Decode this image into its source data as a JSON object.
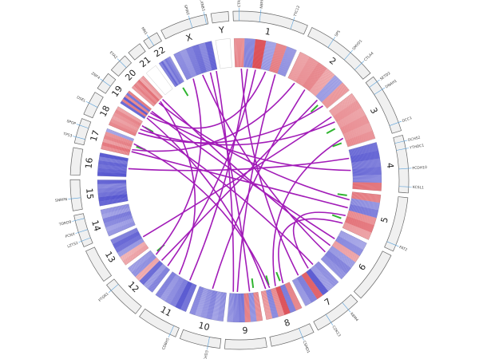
{
  "chart_data": {
    "type": "circos",
    "link_color": "#a21cb8",
    "point_color": "#2fb52f",
    "heat_positive_color": "#d3202a",
    "heat_negative_color": "#2a2ac4",
    "chromosomes": [
      {
        "name": "1",
        "length": 249,
        "heat": [
          0.4,
          -0.5,
          0.9,
          -0.3,
          0.5,
          -0.4
        ]
      },
      {
        "name": "2",
        "length": 243,
        "heat": [
          0.3,
          0.4,
          0.5,
          0.3,
          -0.4,
          0.4
        ]
      },
      {
        "name": "3",
        "length": 198,
        "heat": [
          0.3,
          0.4,
          0.3,
          0.4,
          0.3,
          0.4
        ]
      },
      {
        "name": "4",
        "length": 190,
        "heat": [
          -0.7,
          -0.8,
          -0.6,
          -0.7,
          -0.5,
          0.6
        ]
      },
      {
        "name": "5",
        "length": 181,
        "heat": [
          0.5,
          -0.4,
          -0.6,
          0.4,
          0.6,
          0.3
        ]
      },
      {
        "name": "6",
        "length": 171,
        "heat": [
          -0.3,
          -0.5,
          0.3,
          -0.4,
          -0.6,
          -0.5
        ]
      },
      {
        "name": "7",
        "length": 159,
        "heat": [
          -0.5,
          -0.4,
          -0.9,
          0.8,
          -0.6,
          -0.4
        ]
      },
      {
        "name": "8",
        "length": 145,
        "heat": [
          0.5,
          -0.6,
          0.9,
          0.4,
          -0.5,
          0.3
        ]
      },
      {
        "name": "9",
        "length": 138,
        "heat": [
          0.4,
          -0.4,
          0.5,
          -0.6,
          -0.5,
          -0.4
        ]
      },
      {
        "name": "10",
        "length": 134,
        "heat": [
          -0.4,
          -0.3,
          -0.5,
          -0.4,
          -0.3,
          -0.5
        ]
      },
      {
        "name": "11",
        "length": 135,
        "heat": [
          -0.7,
          -0.9,
          -0.6,
          -0.5,
          -0.4,
          -0.6
        ]
      },
      {
        "name": "12",
        "length": 133,
        "heat": [
          -0.6,
          -0.4,
          -0.8,
          0.3,
          -0.5,
          -0.4
        ]
      },
      {
        "name": "13",
        "length": 114,
        "heat": [
          0.3,
          0.2,
          -0.4,
          -0.7,
          -0.8,
          -0.6
        ]
      },
      {
        "name": "14",
        "length": 107,
        "heat": [
          -0.4,
          -0.3,
          -0.5,
          -0.6,
          -0.3,
          -0.4
        ]
      },
      {
        "name": "15",
        "length": 102,
        "heat": [
          -0.8,
          -0.9,
          -0.7,
          -0.6,
          -0.5,
          -0.8
        ]
      },
      {
        "name": "16",
        "length": 90,
        "heat": [
          -0.9,
          -0.8,
          -0.7,
          -0.8,
          -0.6,
          -0.9
        ]
      },
      {
        "name": "17",
        "length": 83,
        "heat": [
          0.4,
          0.6,
          0.3,
          0.5,
          0.4,
          -0.3
        ]
      },
      {
        "name": "18",
        "length": 80,
        "heat": [
          0.5,
          0.4,
          0.3,
          0.4,
          0.5,
          0.3
        ]
      },
      {
        "name": "19",
        "length": 59,
        "heat": [
          -0.8,
          0.6,
          -0.9,
          0.5,
          -0.7,
          0.6
        ]
      },
      {
        "name": "20",
        "length": 64,
        "heat": [
          0.4,
          0.6,
          0.5,
          0.7,
          0.3,
          0.4
        ]
      },
      {
        "name": "21",
        "length": 47,
        "heat": [
          0,
          0,
          0,
          0,
          0,
          0
        ]
      },
      {
        "name": "22",
        "length": 51,
        "heat": [
          -0.6,
          -0.8,
          -0.5,
          -0.7,
          -0.6,
          -0.5
        ]
      },
      {
        "name": "X",
        "length": 156,
        "heat": [
          -0.5,
          -0.4,
          -0.6,
          -0.7,
          -0.5,
          -0.8
        ]
      },
      {
        "name": "Y",
        "length": 57,
        "heat": [
          0,
          0,
          0,
          0,
          0,
          0
        ]
      }
    ],
    "links": [
      {
        "from": [
          "1",
          60
        ],
        "to": [
          "11",
          40
        ]
      },
      {
        "from": [
          "1",
          150
        ],
        "to": [
          "19",
          20
        ]
      },
      {
        "from": [
          "2",
          40
        ],
        "to": [
          "17",
          30
        ]
      },
      {
        "from": [
          "2",
          180
        ],
        "to": [
          "12",
          60
        ]
      },
      {
        "from": [
          "3",
          60
        ],
        "to": [
          "18",
          40
        ]
      },
      {
        "from": [
          "3",
          150
        ],
        "to": [
          "8",
          70
        ]
      },
      {
        "from": [
          "4",
          100
        ],
        "to": [
          "19",
          40
        ]
      },
      {
        "from": [
          "5",
          40
        ],
        "to": [
          "20",
          30
        ]
      },
      {
        "from": [
          "5",
          120
        ],
        "to": [
          "7",
          60
        ]
      },
      {
        "from": [
          "5",
          160
        ],
        "to": [
          "8",
          30
        ]
      },
      {
        "from": [
          "6",
          50
        ],
        "to": [
          "19",
          50
        ]
      },
      {
        "from": [
          "6",
          130
        ],
        "to": [
          "X",
          80
        ]
      },
      {
        "from": [
          "7",
          30
        ],
        "to": [
          "18",
          60
        ]
      },
      {
        "from": [
          "7",
          120
        ],
        "to": [
          "1",
          30
        ]
      },
      {
        "from": [
          "8",
          100
        ],
        "to": [
          "17",
          60
        ]
      },
      {
        "from": [
          "9",
          40
        ],
        "to": [
          "X",
          120
        ]
      },
      {
        "from": [
          "9",
          100
        ],
        "to": [
          "1",
          200
        ]
      },
      {
        "from": [
          "10",
          70
        ],
        "to": [
          "2",
          100
        ]
      },
      {
        "from": [
          "11",
          100
        ],
        "to": [
          "20",
          40
        ]
      },
      {
        "from": [
          "12",
          20
        ],
        "to": [
          "1",
          100
        ]
      },
      {
        "from": [
          "12",
          100
        ],
        "to": [
          "X",
          30
        ]
      },
      {
        "from": [
          "13",
          60
        ],
        "to": [
          "3",
          30
        ]
      },
      {
        "from": [
          "16",
          40
        ],
        "to": [
          "4",
          40
        ]
      },
      {
        "from": [
          "17",
          20
        ],
        "to": [
          "5",
          80
        ]
      },
      {
        "from": [
          "18",
          20
        ],
        "to": [
          "2",
          220
        ]
      },
      {
        "from": [
          "19",
          10
        ],
        "to": [
          "8",
          120
        ]
      },
      {
        "from": [
          "20",
          55
        ],
        "to": [
          "6",
          90
        ]
      },
      {
        "from": [
          "X",
          150
        ],
        "to": [
          "9",
          120
        ]
      }
    ],
    "points": [
      {
        "chrom": "22",
        "pos": 30
      },
      {
        "chrom": "2",
        "pos": 200
      },
      {
        "chrom": "3",
        "pos": 90
      },
      {
        "chrom": "3",
        "pos": 170
      },
      {
        "chrom": "5",
        "pos": 20
      },
      {
        "chrom": "5",
        "pos": 140
      },
      {
        "chrom": "8",
        "pos": 40
      },
      {
        "chrom": "8",
        "pos": 100
      },
      {
        "chrom": "9",
        "pos": 20
      },
      {
        "chrom": "12",
        "pos": 110
      },
      {
        "chrom": "17",
        "pos": 50
      },
      {
        "chrom": "18",
        "pos": 60
      }
    ],
    "genes": [
      {
        "label": "CTR1",
        "chrom": "1",
        "pos": 20
      },
      {
        "label": "NBPF1",
        "chrom": "1",
        "pos": 90
      },
      {
        "label": "TTC12",
        "chrom": "1",
        "pos": 200
      },
      {
        "label": "SPS",
        "chrom": "2",
        "pos": 80
      },
      {
        "label": "SMYD1",
        "chrom": "2",
        "pos": 150
      },
      {
        "label": "CTLA4",
        "chrom": "2",
        "pos": 200
      },
      {
        "label": "SETD2",
        "chrom": "3",
        "pos": 20
      },
      {
        "label": "DNAH1",
        "chrom": "3",
        "pos": 50
      },
      {
        "label": "DCC1",
        "chrom": "3",
        "pos": 170
      },
      {
        "label": "DCHS2",
        "chrom": "4",
        "pos": 20
      },
      {
        "label": "YTHDC1",
        "chrom": "4",
        "pos": 45
      },
      {
        "label": "PCDH10",
        "chrom": "4",
        "pos": 110
      },
      {
        "label": "KCSL1",
        "chrom": "4",
        "pos": 170
      },
      {
        "label": "FAT2",
        "chrom": "5",
        "pos": 160
      },
      {
        "label": "RBM4",
        "chrom": "7",
        "pos": 40
      },
      {
        "label": "CDK13",
        "chrom": "7",
        "pos": 110
      },
      {
        "label": "CSMD1",
        "chrom": "8",
        "pos": 40
      },
      {
        "label": "PTCHD3",
        "chrom": "10",
        "pos": 40
      },
      {
        "label": "CD8H5",
        "chrom": "11",
        "pos": 20
      },
      {
        "label": "PTGR1",
        "chrom": "12",
        "pos": 110
      },
      {
        "label": "LZTS2",
        "chrom": "14",
        "pos": 20
      },
      {
        "label": "PCNX",
        "chrom": "14",
        "pos": 50
      },
      {
        "label": "TDRD9",
        "chrom": "14",
        "pos": 90
      },
      {
        "label": "SNRPN",
        "chrom": "15",
        "pos": 40
      },
      {
        "label": "TP53",
        "chrom": "17",
        "pos": 20
      },
      {
        "label": "SPOP",
        "chrom": "17",
        "pos": 60
      },
      {
        "label": "DSEL",
        "chrom": "18",
        "pos": 40
      },
      {
        "label": "ZNF4",
        "chrom": "19",
        "pos": 30
      },
      {
        "label": "EYA2",
        "chrom": "20",
        "pos": 40
      },
      {
        "label": "MN1",
        "chrom": "22",
        "pos": 20
      },
      {
        "label": "SPIN2",
        "chrom": "X",
        "pos": 100
      },
      {
        "label": "PLXNB3",
        "chrom": "X",
        "pos": 150
      }
    ]
  }
}
